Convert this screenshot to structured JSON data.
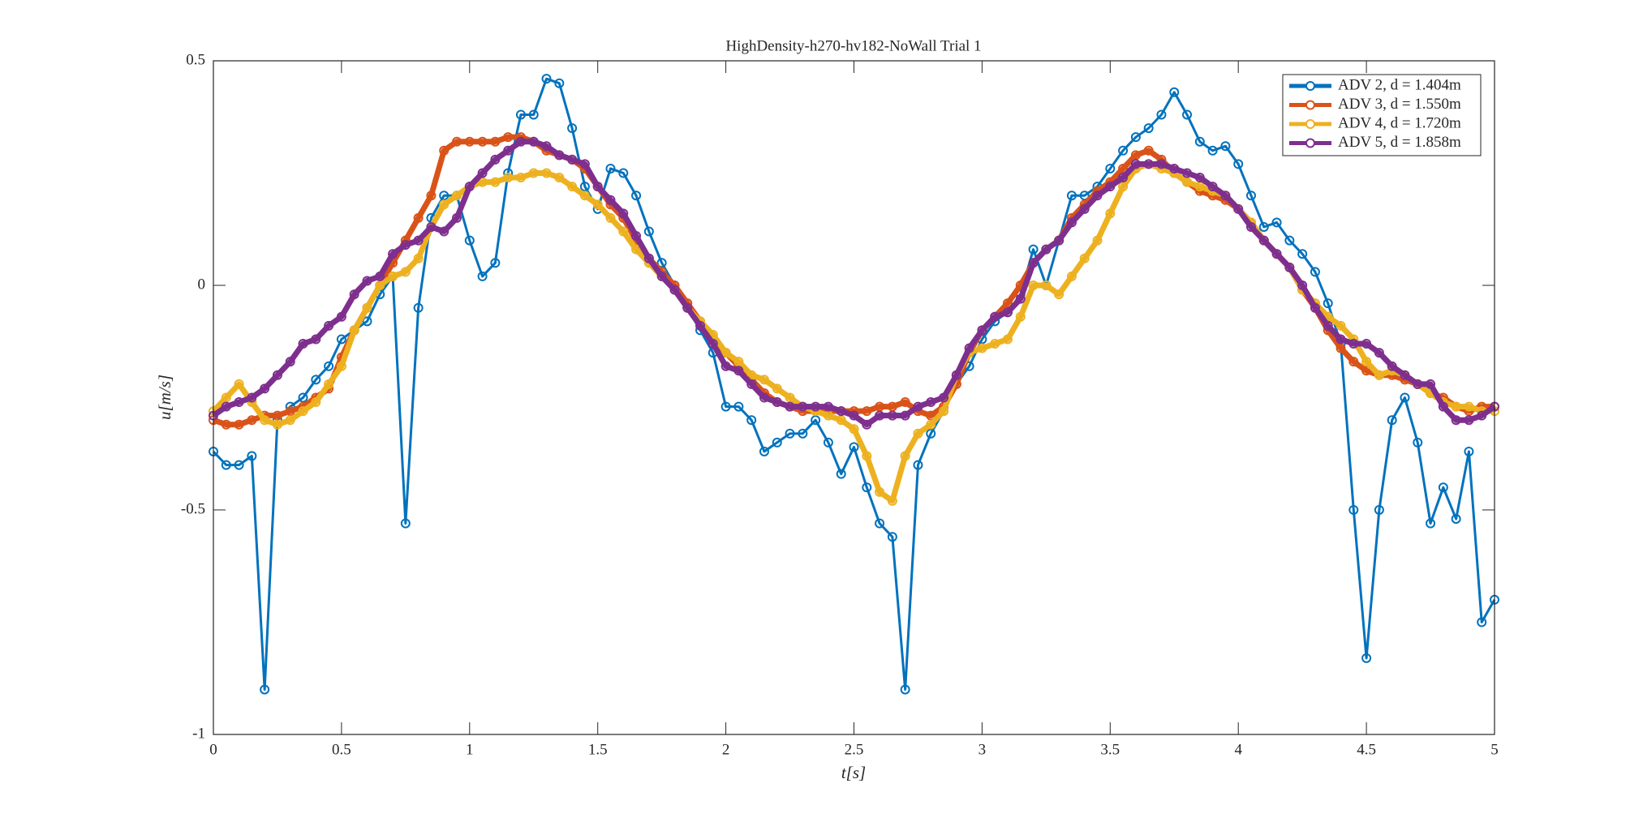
{
  "chart_data": {
    "type": "line",
    "title": "HighDensity-h270-hv182-NoWall Trial 1",
    "x_label": "t[s]",
    "y_label": "u[m/s]",
    "x": [
      0,
      0.05,
      0.1,
      0.15,
      0.2,
      0.25,
      0.3,
      0.35,
      0.4,
      0.45,
      0.5,
      0.55,
      0.6,
      0.65,
      0.7,
      0.75,
      0.8,
      0.85,
      0.9,
      0.95,
      1,
      1.05,
      1.1,
      1.15,
      1.2,
      1.25,
      1.3,
      1.35,
      1.4,
      1.45,
      1.5,
      1.55,
      1.6,
      1.65,
      1.7,
      1.75,
      1.8,
      1.85,
      1.9,
      1.95,
      2,
      2.05,
      2.1,
      2.15,
      2.2,
      2.25,
      2.3,
      2.35,
      2.4,
      2.45,
      2.5,
      2.55,
      2.6,
      2.65,
      2.7,
      2.75,
      2.8,
      2.85,
      2.9,
      2.95,
      3,
      3.05,
      3.1,
      3.15,
      3.2,
      3.25,
      3.3,
      3.35,
      3.4,
      3.45,
      3.5,
      3.55,
      3.6,
      3.65,
      3.7,
      3.75,
      3.8,
      3.85,
      3.9,
      3.95,
      4,
      4.05,
      4.1,
      4.15,
      4.2,
      4.25,
      4.3,
      4.35,
      4.4,
      4.45,
      4.5,
      4.55,
      4.6,
      4.65,
      4.7,
      4.75,
      4.8,
      4.85,
      4.9,
      4.95,
      5
    ],
    "series": [
      {
        "name": "ADV 2, d = 1.404m",
        "color": "#0072bd",
        "values": [
          -0.37,
          -0.4,
          -0.4,
          -0.38,
          -0.9,
          -0.3,
          -0.27,
          -0.25,
          -0.21,
          -0.18,
          -0.12,
          -0.1,
          -0.08,
          -0.02,
          0.02,
          -0.53,
          -0.05,
          0.15,
          0.2,
          0.2,
          0.1,
          0.02,
          0.05,
          0.25,
          0.38,
          0.38,
          0.46,
          0.45,
          0.35,
          0.22,
          0.17,
          0.26,
          0.25,
          0.2,
          0.12,
          0.05,
          0,
          -0.05,
          -0.1,
          -0.15,
          -0.27,
          -0.27,
          -0.3,
          -0.37,
          -0.35,
          -0.33,
          -0.33,
          -0.3,
          -0.35,
          -0.42,
          -0.36,
          -0.45,
          -0.53,
          -0.56,
          -0.9,
          -0.4,
          -0.33,
          -0.28,
          -0.22,
          -0.18,
          -0.12,
          -0.08,
          -0.06,
          -0.02,
          0.08,
          0,
          0.1,
          0.2,
          0.2,
          0.22,
          0.26,
          0.3,
          0.33,
          0.35,
          0.38,
          0.43,
          0.38,
          0.32,
          0.3,
          0.31,
          0.27,
          0.2,
          0.13,
          0.14,
          0.1,
          0.07,
          0.03,
          -0.04,
          -0.13,
          -0.5,
          -0.83,
          -0.5,
          -0.3,
          -0.25,
          -0.35,
          -0.53,
          -0.45,
          -0.52,
          -0.37,
          -0.75,
          -0.7
        ]
      },
      {
        "name": "ADV 3, d = 1.550m",
        "color": "#d95319",
        "values": [
          -0.3,
          -0.31,
          -0.31,
          -0.3,
          -0.29,
          -0.29,
          -0.28,
          -0.27,
          -0.25,
          -0.23,
          -0.16,
          -0.1,
          -0.05,
          0,
          0.05,
          0.1,
          0.15,
          0.2,
          0.3,
          0.32,
          0.32,
          0.32,
          0.32,
          0.33,
          0.33,
          0.32,
          0.3,
          0.29,
          0.28,
          0.26,
          0.22,
          0.18,
          0.15,
          0.1,
          0.06,
          0.03,
          0,
          -0.04,
          -0.08,
          -0.12,
          -0.15,
          -0.18,
          -0.21,
          -0.24,
          -0.26,
          -0.27,
          -0.28,
          -0.28,
          -0.28,
          -0.28,
          -0.28,
          -0.28,
          -0.27,
          -0.27,
          -0.26,
          -0.28,
          -0.29,
          -0.27,
          -0.22,
          -0.15,
          -0.1,
          -0.07,
          -0.04,
          0,
          0.05,
          0.08,
          0.1,
          0.15,
          0.18,
          0.21,
          0.23,
          0.26,
          0.29,
          0.3,
          0.28,
          0.25,
          0.23,
          0.21,
          0.2,
          0.19,
          0.17,
          0.14,
          0.1,
          0.07,
          0.04,
          -0.01,
          -0.05,
          -0.1,
          -0.14,
          -0.17,
          -0.19,
          -0.2,
          -0.2,
          -0.21,
          -0.22,
          -0.24,
          -0.25,
          -0.27,
          -0.28,
          -0.27,
          -0.27
        ]
      },
      {
        "name": "ADV 4, d = 1.720m",
        "color": "#edb120",
        "values": [
          -0.28,
          -0.25,
          -0.22,
          -0.26,
          -0.3,
          -0.31,
          -0.3,
          -0.28,
          -0.26,
          -0.22,
          -0.18,
          -0.1,
          -0.05,
          0,
          0.02,
          0.03,
          0.06,
          0.13,
          0.18,
          0.2,
          0.22,
          0.23,
          0.23,
          0.24,
          0.24,
          0.25,
          0.25,
          0.24,
          0.22,
          0.2,
          0.18,
          0.15,
          0.12,
          0.08,
          0.05,
          0.02,
          -0.01,
          -0.05,
          -0.08,
          -0.11,
          -0.15,
          -0.17,
          -0.2,
          -0.21,
          -0.23,
          -0.25,
          -0.27,
          -0.28,
          -0.29,
          -0.3,
          -0.32,
          -0.38,
          -0.46,
          -0.48,
          -0.38,
          -0.33,
          -0.31,
          -0.28,
          -0.2,
          -0.15,
          -0.14,
          -0.13,
          -0.12,
          -0.07,
          0,
          0,
          -0.02,
          0.02,
          0.06,
          0.1,
          0.16,
          0.22,
          0.26,
          0.27,
          0.26,
          0.25,
          0.23,
          0.22,
          0.21,
          0.2,
          0.17,
          0.14,
          0.1,
          0.07,
          0.04,
          -0.01,
          -0.04,
          -0.07,
          -0.09,
          -0.12,
          -0.17,
          -0.2,
          -0.19,
          -0.2,
          -0.22,
          -0.24,
          -0.26,
          -0.27,
          -0.27,
          -0.28,
          -0.28
        ]
      },
      {
        "name": "ADV 5, d = 1.858m",
        "color": "#7e2f8e",
        "values": [
          -0.29,
          -0.27,
          -0.26,
          -0.25,
          -0.23,
          -0.2,
          -0.17,
          -0.13,
          -0.12,
          -0.09,
          -0.07,
          -0.02,
          0.01,
          0.02,
          0.07,
          0.09,
          0.1,
          0.13,
          0.12,
          0.15,
          0.22,
          0.25,
          0.28,
          0.3,
          0.32,
          0.32,
          0.31,
          0.29,
          0.28,
          0.27,
          0.22,
          0.19,
          0.16,
          0.11,
          0.06,
          0.02,
          -0.01,
          -0.05,
          -0.09,
          -0.13,
          -0.18,
          -0.19,
          -0.22,
          -0.25,
          -0.26,
          -0.27,
          -0.27,
          -0.27,
          -0.27,
          -0.28,
          -0.29,
          -0.31,
          -0.29,
          -0.29,
          -0.29,
          -0.27,
          -0.26,
          -0.25,
          -0.2,
          -0.14,
          -0.1,
          -0.07,
          -0.06,
          -0.03,
          0.05,
          0.08,
          0.1,
          0.14,
          0.17,
          0.2,
          0.22,
          0.24,
          0.27,
          0.27,
          0.27,
          0.26,
          0.25,
          0.24,
          0.22,
          0.2,
          0.17,
          0.13,
          0.1,
          0.07,
          0.04,
          0,
          -0.05,
          -0.09,
          -0.12,
          -0.13,
          -0.13,
          -0.15,
          -0.18,
          -0.2,
          -0.22,
          -0.22,
          -0.27,
          -0.3,
          -0.3,
          -0.29,
          -0.27
        ]
      }
    ],
    "xlim": [
      0,
      5
    ],
    "ylim": [
      -1,
      0.5
    ],
    "xticks": [
      0,
      0.5,
      1,
      1.5,
      2,
      2.5,
      3,
      3.5,
      4,
      4.5,
      5
    ],
    "yticks": [
      -1,
      -0.5,
      0,
      0.5
    ],
    "legend": "upper right",
    "grid": false
  }
}
